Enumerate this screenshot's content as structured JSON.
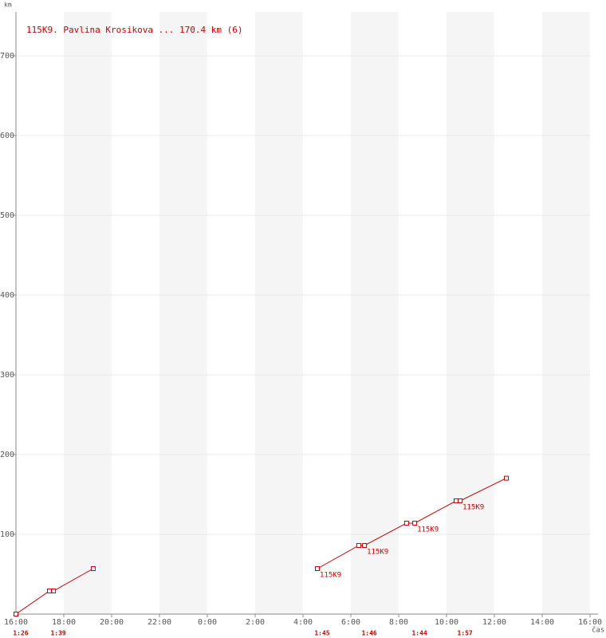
{
  "chart_data": {
    "type": "line",
    "y_axis_label": "km",
    "x_axis_label": "čas",
    "xlim": [
      0,
      24
    ],
    "xticks": [
      {
        "value": 0,
        "label": "16:00"
      },
      {
        "value": 2,
        "label": "18:00"
      },
      {
        "value": 4,
        "label": "20:00"
      },
      {
        "value": 6,
        "label": "22:00"
      },
      {
        "value": 8,
        "label": "0:00"
      },
      {
        "value": 10,
        "label": "2:00"
      },
      {
        "value": 12,
        "label": "4:00"
      },
      {
        "value": 14,
        "label": "6:00"
      },
      {
        "value": 16,
        "label": "8:00"
      },
      {
        "value": 18,
        "label": "10:00"
      },
      {
        "value": 20,
        "label": "12:00"
      },
      {
        "value": 22,
        "label": "14:00"
      },
      {
        "value": 24,
        "label": "16:00"
      }
    ],
    "ylim": [
      0,
      755
    ],
    "yticks": [
      100,
      200,
      300,
      400,
      500,
      600,
      700
    ],
    "grid": true,
    "alternating_bands": true,
    "series": [
      {
        "name": "115K9. Pavlina Krosikova ... 170.4 km (6)",
        "color": "#cc0000",
        "x": [
          0,
          1.4,
          1.57,
          3.23,
          null,
          12.6,
          14.33,
          14.57,
          16.33,
          16.67,
          18.4,
          18.57,
          20.5
        ],
        "values": [
          0,
          29,
          29,
          57,
          null,
          57,
          86,
          86,
          114,
          114,
          142,
          142,
          170.4
        ]
      }
    ],
    "annotations": [
      {
        "x": 12.6,
        "y": 57,
        "text": "115K9"
      },
      {
        "x": 14.57,
        "y": 86,
        "text": "115K9"
      },
      {
        "x": 16.67,
        "y": 114,
        "text": "115K9"
      },
      {
        "x": 18.57,
        "y": 142,
        "text": "115K9"
      }
    ],
    "time_labels": [
      {
        "x": 0,
        "text": "1:26"
      },
      {
        "x": 1.57,
        "text": "1:39"
      },
      {
        "x": 12.6,
        "text": "1:45"
      },
      {
        "x": 14.57,
        "text": "1:46"
      },
      {
        "x": 16.67,
        "text": "1:44"
      },
      {
        "x": 18.57,
        "text": "1:57"
      }
    ]
  }
}
